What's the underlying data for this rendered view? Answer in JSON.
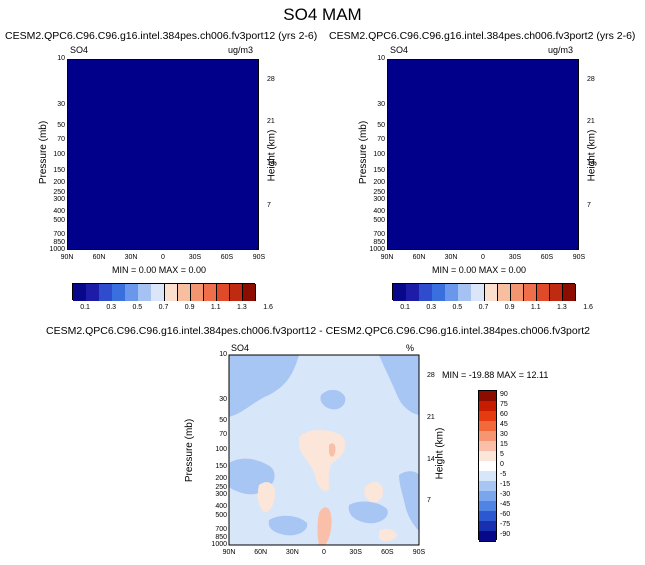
{
  "title": "SO4 MAM",
  "panels": {
    "left": {
      "title": "CESM2.QPC6.C96.C96.g16.intel.384pes.ch006.fv3port12 (yrs 2-6)",
      "var": "SO4",
      "units": "ug/m3",
      "minmax": "MIN =   0.00   MAX =   0.00",
      "fill": "#00008b"
    },
    "right": {
      "title": "CESM2.QPC6.C96.C96.g16.intel.384pes.ch006.fv3port2 (yrs 2-6)",
      "var": "SO4",
      "units": "ug/m3",
      "minmax": "MIN =   0.00   MAX =   0.00",
      "fill": "#00008b"
    },
    "diff": {
      "title": "CESM2.QPC6.C96.C96.g16.intel.384pes.ch006.fv3port12 - CESM2.QPC6.C96.C96.g16.intel.384pes.ch006.fv3port2",
      "var": "SO4",
      "units": "%",
      "minmax": "MIN = -19.88   MAX =  12.11"
    }
  },
  "axes": {
    "ylabel": "Pressure (mb)",
    "y2label": "Height (km)",
    "pressure_ticks": [
      "10",
      "30",
      "50",
      "70",
      "100",
      "150",
      "200",
      "250",
      "300",
      "400",
      "500",
      "700",
      "850",
      "1000"
    ],
    "height_ticks": [
      "28",
      "21",
      "14",
      "7"
    ],
    "lat_ticks": [
      "90N",
      "60N",
      "30N",
      "0",
      "30S",
      "60S",
      "90S"
    ]
  },
  "colorbars": {
    "abs": {
      "labels": [
        "0.1",
        "0.3",
        "0.5",
        "0.7",
        "0.9",
        "1.1",
        "1.3",
        "1.6"
      ],
      "colors": [
        "#08088a",
        "#1c1ca8",
        "#2f4ccc",
        "#3a6fe0",
        "#6a96ec",
        "#a6c2f2",
        "#dbe6f8",
        "#fbe0d0",
        "#f8bea0",
        "#f49572",
        "#ee6f4a",
        "#e04a28",
        "#c02a10",
        "#8c0c00"
      ]
    },
    "diff": {
      "labels": [
        "90",
        "75",
        "60",
        "45",
        "30",
        "15",
        "5",
        "0",
        "-5",
        "-15",
        "-30",
        "-45",
        "-60",
        "-75",
        "-90"
      ],
      "colors": [
        "#8c0c00",
        "#c61c00",
        "#e63a10",
        "#f26a3c",
        "#f69572",
        "#f9bfa8",
        "#fce6da",
        "#ffffff",
        "#d8e6fa",
        "#a8c6f4",
        "#7aa6ee",
        "#4f84e4",
        "#2c58d2",
        "#1830b0",
        "#08088a"
      ]
    }
  },
  "chart_data": [
    {
      "type": "heatmap",
      "title": "CESM2.QPC6.C96.C96.g16.intel.384pes.ch006.fv3port12 (yrs 2-6)",
      "variable": "SO4",
      "units": "ug/m3",
      "x": [
        "90N",
        "60N",
        "30N",
        "0",
        "30S",
        "60S",
        "90S"
      ],
      "y_pressure_mb": [
        10,
        1000
      ],
      "min": 0.0,
      "max": 0.0
    },
    {
      "type": "heatmap",
      "title": "CESM2.QPC6.C96.C96.g16.intel.384pes.ch006.fv3port2 (yrs 2-6)",
      "variable": "SO4",
      "units": "ug/m3",
      "x": [
        "90N",
        "60N",
        "30N",
        "0",
        "30S",
        "60S",
        "90S"
      ],
      "y_pressure_mb": [
        10,
        1000
      ],
      "min": 0.0,
      "max": 0.0
    },
    {
      "type": "heatmap",
      "title": "CESM2.QPC6.C96.C96.g16.intel.384pes.ch006.fv3port12 - CESM2.QPC6.C96.C96.g16.intel.384pes.ch006.fv3port2",
      "variable": "SO4",
      "units": "%",
      "x": [
        "90N",
        "60N",
        "30N",
        "0",
        "30S",
        "60S",
        "90S"
      ],
      "y_pressure_mb": [
        10,
        1000
      ],
      "min": -19.88,
      "max": 12.11
    }
  ]
}
